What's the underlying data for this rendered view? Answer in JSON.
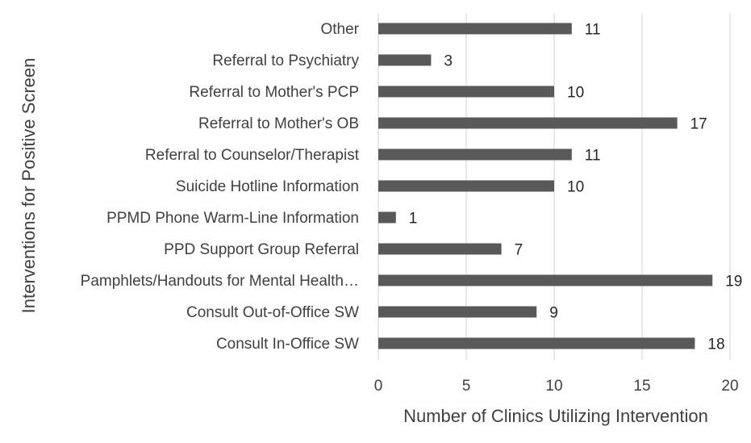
{
  "chart_data": {
    "type": "bar",
    "orientation": "horizontal",
    "categories": [
      "Other",
      "Referral to Psychiatry",
      "Referral to Mother's PCP",
      "Referral to Mother's OB",
      "Referral to Counselor/Therapist",
      "Suicide Hotline Information",
      "PPMD Phone Warm-Line Information",
      "PPD Support Group Referral",
      "Pamphlets/Handouts for Mental Health…",
      "Consult Out-of-Office SW",
      "Consult In-Office SW"
    ],
    "values": [
      11,
      3,
      10,
      17,
      11,
      10,
      1,
      7,
      19,
      9,
      18
    ],
    "data_labels": [
      "11",
      "3",
      "10",
      "17",
      "11",
      "10",
      "1",
      "7",
      "19",
      "9",
      "18"
    ],
    "xlabel": "Number of Clinics Utilizing Intervention",
    "ylabel": "Interventions for Positive Screen",
    "xlim": [
      0,
      20
    ],
    "x_ticks": [
      0,
      5,
      10,
      15,
      20
    ],
    "x_tick_labels": [
      "0",
      "5",
      "10",
      "15",
      "20"
    ],
    "grid": "vertical",
    "legend": "none",
    "bar_color": "#595959",
    "grid_color": "#d9d9d9"
  }
}
